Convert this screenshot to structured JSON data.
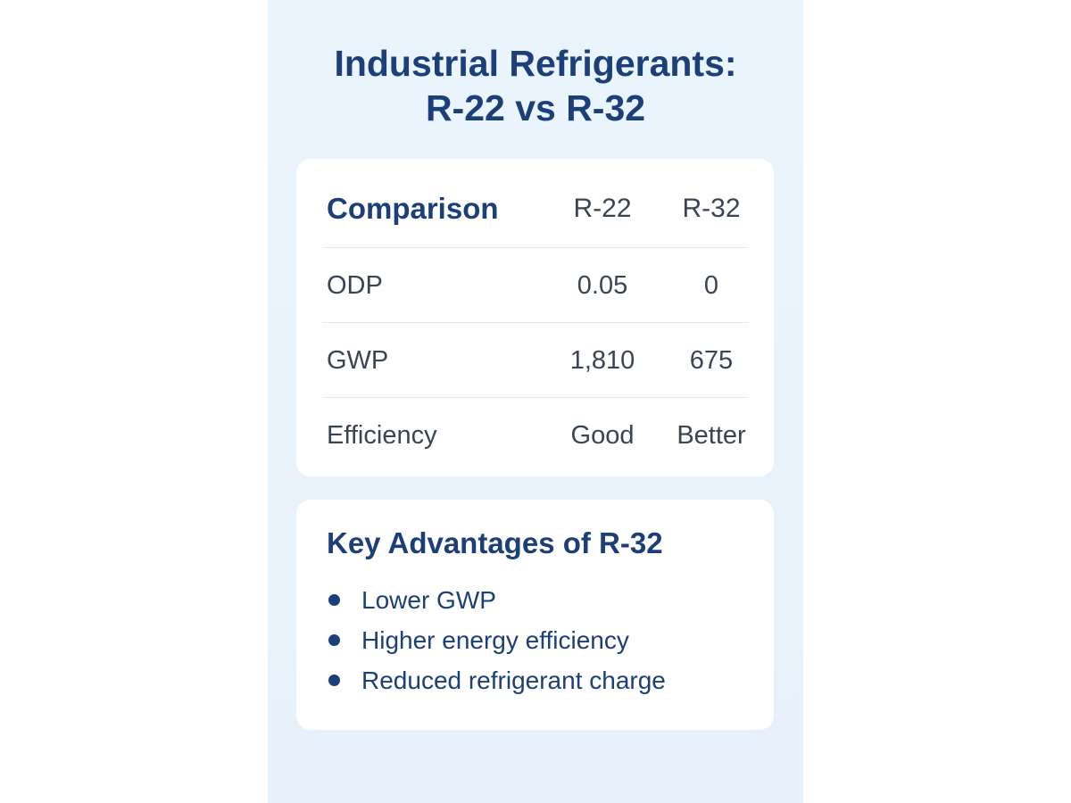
{
  "title": {
    "line1": "Industrial Refrigerants:",
    "line2": "R-22 vs R-32"
  },
  "comparison_table": {
    "headers": {
      "label": "Comparison",
      "col1": "R-22",
      "col2": "R-32"
    },
    "rows": [
      {
        "label": "ODP",
        "r22": "0.05",
        "r32": "0"
      },
      {
        "label": "GWP",
        "r22": "1,810",
        "r32": "675"
      },
      {
        "label": "Efficiency",
        "r22": "Good",
        "r32": "Better"
      }
    ]
  },
  "advantages": {
    "heading": "Key Advantages of R-32",
    "items": [
      "Lower GWP",
      "Higher energy efficiency",
      "Reduced refrigerant charge"
    ]
  },
  "colors": {
    "accent": "#1d3f79",
    "background": "#eaf4fc",
    "card": "#ffffff",
    "body_text": "#3a4553"
  }
}
